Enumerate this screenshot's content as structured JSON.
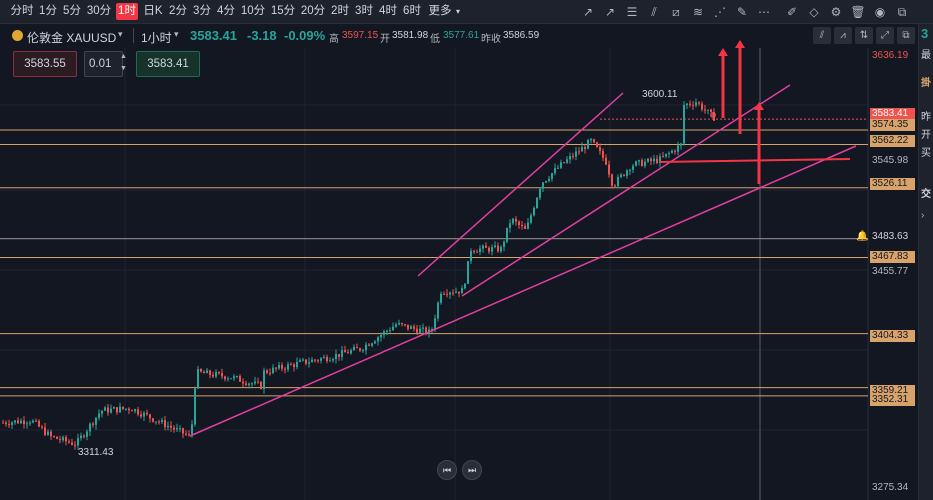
{
  "toolbar": {
    "timeframes": [
      "分时",
      "1分",
      "5分",
      "30分",
      "1时",
      "日K",
      "2分",
      "3分",
      "4分",
      "10分",
      "15分",
      "20分",
      "2时",
      "3时",
      "4时",
      "6时",
      "更多"
    ],
    "active_timeframe": "1时"
  },
  "symbol": {
    "name": "伦敦金 XAUUSD",
    "interval": "1小时",
    "last": "3583.41",
    "change": "-3.18",
    "change_pct": "-0.09%",
    "high_label": "高",
    "high": "3597.15",
    "open_label": "开",
    "open": "3581.98",
    "low_label": "低",
    "low": "3577.61",
    "prev_close_label": "昨收",
    "prev_close": "3586.59"
  },
  "trade": {
    "sell_price": "3583.55",
    "quantity": "0.01",
    "buy_price": "3583.41"
  },
  "colors": {
    "background": "#131722",
    "up": "#26a69a",
    "down": "#ef5350",
    "trendline": "#e040a0",
    "level_line": "#d8a36a",
    "arrow": "#f23645",
    "accent": "#f23645"
  },
  "price_axis": {
    "labels": [
      "3636.19",
      "3583.41",
      "3574.35",
      "3562.22",
      "3545.98",
      "3526.11",
      "3483.63",
      "3467.83",
      "3455.77",
      "3404.33",
      "3359.21",
      "3352.31",
      "3275.34"
    ],
    "ymin": 3275.34,
    "ymax": 3636.19
  },
  "chart_data": {
    "type": "candlestick",
    "symbol": "XAUUSD",
    "interval": "1小时",
    "high_annotation": "3600.11",
    "low_annotation": "3311.43",
    "horizontal_levels": [
      3574.35,
      3562.22,
      3526.11,
      3483.63,
      3467.83,
      3404.33,
      3359.21,
      3352.31
    ],
    "current_price": 3583.41,
    "price_range": [
      3275.34,
      3636.19
    ]
  },
  "bottom_nav": {
    "prev_icon": "skip-back-icon",
    "next_icon": "skip-forward-icon"
  },
  "right_panel": {
    "chars": [
      "3",
      "最",
      "掛",
      "昨",
      "开",
      "买",
      "交"
    ]
  }
}
